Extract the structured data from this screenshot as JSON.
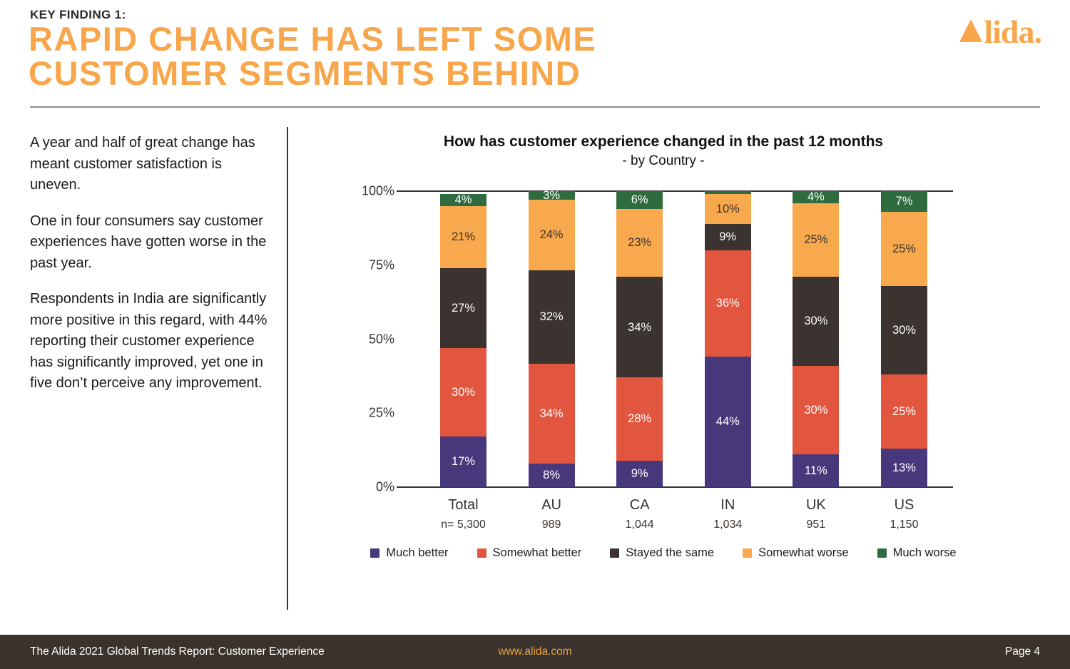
{
  "header": {
    "eyebrow": "KEY FINDING 1:",
    "title_line1": "RAPID CHANGE HAS LEFT SOME",
    "title_line2": "CUSTOMER SEGMENTS BEHIND"
  },
  "logo": {
    "text": "lida.",
    "mark": "triangle-delta",
    "color": "#F7A64B"
  },
  "intro": {
    "paragraphs": [
      "A year and half of great change has meant customer satisfaction is uneven.",
      "One in four consumers say customer experiences have gotten worse in the past year.",
      "Respondents in India are significantly more positive in this regard, with 44% reporting their customer experience has significantly improved, yet one in five don’t perceive any improvement."
    ]
  },
  "chart_data": {
    "type": "bar",
    "stacked": true,
    "title": "How has customer experience changed in the past 12 months",
    "subtitle": "- by Country -",
    "categories": [
      "Total",
      "AU",
      "CA",
      "IN",
      "UK",
      "US"
    ],
    "sample_sizes": [
      "n= 5,300",
      "989",
      "1,044",
      "1,034",
      "951",
      "1,150"
    ],
    "series": [
      {
        "name": "Much better",
        "color": "#47387B",
        "label_color": "#FFFFFF",
        "values": [
          17,
          8,
          9,
          44,
          11,
          13
        ]
      },
      {
        "name": "Somewhat better",
        "color": "#E2553F",
        "label_color": "#FFFFFF",
        "values": [
          30,
          34,
          28,
          36,
          30,
          25
        ]
      },
      {
        "name": "Stayed the same",
        "color": "#3A332F",
        "label_color": "#FFFFFF",
        "values": [
          27,
          32,
          34,
          9,
          30,
          30
        ]
      },
      {
        "name": "Somewhat worse",
        "color": "#F9A94D",
        "label_color": "#3A332E",
        "values": [
          21,
          24,
          23,
          10,
          25,
          25
        ]
      },
      {
        "name": "Much worse",
        "color": "#2E6B3F",
        "label_color": "#FFFFFF",
        "values": [
          4,
          3,
          6,
          1,
          4,
          7
        ]
      }
    ],
    "min_label_value": 2,
    "yticks": [
      "100%",
      "75%",
      "50%",
      "25%",
      "0%"
    ],
    "ylim": [
      0,
      100
    ],
    "grid": "top-and-baseline-only",
    "legend_position": "bottom"
  },
  "footer": {
    "left": "The Alida 2021 Global Trends Report: Customer Experience",
    "center": "www.alida.com",
    "right": "Page 4"
  },
  "colors": {
    "brand_orange": "#F7A64B",
    "footer_bg": "#3A332D",
    "rule_gray": "#8C8C8C"
  }
}
